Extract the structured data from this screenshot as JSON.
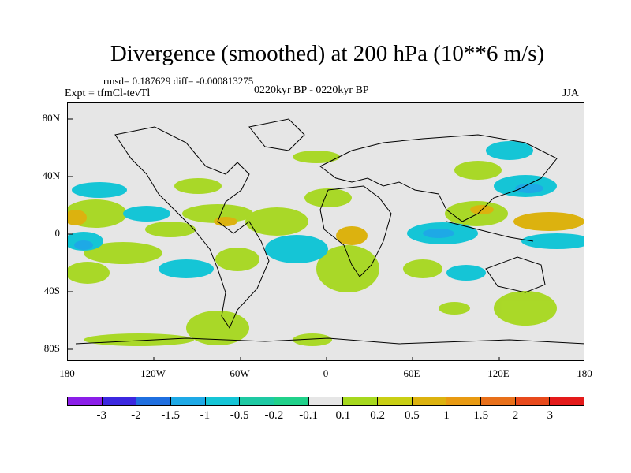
{
  "title": "Divergence (smoothed) at 200 hPa (10**6 m/s)",
  "stats": "rmsd= 0.187629 diff= -0.000813275",
  "expt": "Expt = tfmCl-tevTl",
  "period": "0220kyr BP - 0220kyr BP",
  "season": "JJA",
  "y_ticks": [
    "80N",
    "40N",
    "0",
    "40S",
    "80S"
  ],
  "x_ticks": [
    "180",
    "120W",
    "60W",
    "0",
    "60E",
    "120E",
    "180"
  ],
  "colorbar": {
    "colors": [
      "#8b1ee8",
      "#3c28e0",
      "#1f6fe0",
      "#1ea9e6",
      "#15c5d6",
      "#1ec9a3",
      "#20d18a",
      "#e6e6e6",
      "#a6d81e",
      "#c9cf14",
      "#dcb20f",
      "#e89a12",
      "#e8701a",
      "#e84a1c",
      "#e41a1a"
    ],
    "labels": [
      "-3",
      "-2",
      "-1.5",
      "-1",
      "-0.5",
      "-0.2",
      "-0.1",
      "0.1",
      "0.2",
      "0.5",
      "1",
      "1.5",
      "2",
      "3"
    ]
  },
  "legend_icons": {
    "map": "world-map-icon"
  }
}
